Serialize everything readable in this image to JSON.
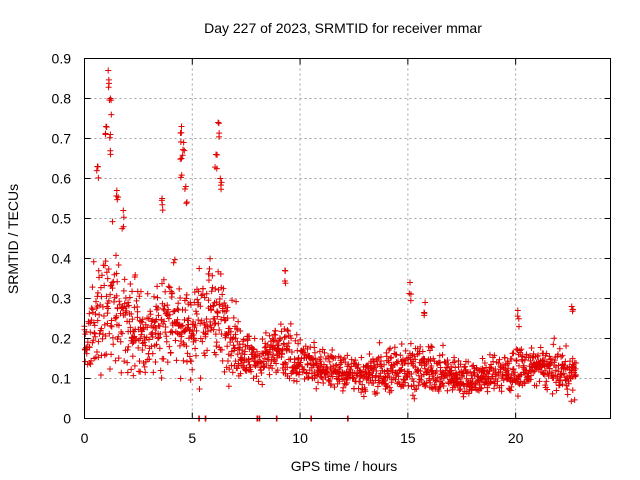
{
  "chart_data": {
    "type": "scatter",
    "title": "Day 227 of 2023, SRMTID for receiver mmar",
    "xlabel": "GPS time / hours",
    "ylabel": "SRMTID / TECUs",
    "xlim": [
      0,
      24.4
    ],
    "ylim": [
      0,
      0.9
    ],
    "x_ticks": [
      0,
      5,
      10,
      15,
      20
    ],
    "y_ticks": [
      0,
      0.1,
      0.2,
      0.3,
      0.4,
      0.5,
      0.6,
      0.7,
      0.8,
      0.9
    ],
    "x_tick_labels": [
      "0",
      "5",
      "10",
      "15",
      "20"
    ],
    "y_tick_labels": [
      "0",
      "0.1",
      "0.2",
      "0.3",
      "0.4",
      "0.5",
      "0.6",
      "0.7",
      "0.8",
      "0.9"
    ],
    "grid": true,
    "marker": "+",
    "color": "#e00000",
    "zero_value_times": [
      5.3,
      5.6,
      8.0,
      8.1,
      8.9,
      10.5,
      12.2
    ],
    "data_envelope": {
      "description": "approximate per-hour distribution of plotted SRMTID values",
      "hours": [
        0,
        1,
        2,
        3,
        4,
        5,
        6,
        7,
        8,
        9,
        10,
        11,
        12,
        13,
        14,
        15,
        16,
        17,
        18,
        19,
        20,
        21,
        22,
        22.8
      ],
      "typical": [
        0.18,
        0.3,
        0.24,
        0.2,
        0.27,
        0.22,
        0.28,
        0.19,
        0.14,
        0.17,
        0.14,
        0.13,
        0.11,
        0.11,
        0.12,
        0.13,
        0.12,
        0.11,
        0.1,
        0.11,
        0.12,
        0.13,
        0.12,
        0.11
      ],
      "spread": [
        0.05,
        0.12,
        0.08,
        0.06,
        0.09,
        0.08,
        0.09,
        0.05,
        0.03,
        0.05,
        0.04,
        0.03,
        0.03,
        0.03,
        0.04,
        0.04,
        0.04,
        0.03,
        0.03,
        0.03,
        0.04,
        0.03,
        0.04,
        0.04
      ]
    },
    "notable_points": [
      {
        "x": 1.1,
        "y": 0.87
      },
      {
        "x": 1.2,
        "y": 0.8
      },
      {
        "x": 1.2,
        "y": 0.71
      },
      {
        "x": 1.0,
        "y": 0.73
      },
      {
        "x": 0.6,
        "y": 0.63
      },
      {
        "x": 1.5,
        "y": 0.57
      },
      {
        "x": 4.5,
        "y": 0.73
      },
      {
        "x": 4.6,
        "y": 0.69
      },
      {
        "x": 4.5,
        "y": 0.65
      },
      {
        "x": 4.7,
        "y": 0.58
      },
      {
        "x": 6.2,
        "y": 0.74
      },
      {
        "x": 6.1,
        "y": 0.66
      },
      {
        "x": 6.3,
        "y": 0.6
      },
      {
        "x": 3.6,
        "y": 0.55
      },
      {
        "x": 1.8,
        "y": 0.52
      },
      {
        "x": 9.3,
        "y": 0.37
      },
      {
        "x": 15.1,
        "y": 0.34
      },
      {
        "x": 15.8,
        "y": 0.29
      },
      {
        "x": 22.6,
        "y": 0.28
      },
      {
        "x": 20.1,
        "y": 0.27
      }
    ]
  }
}
